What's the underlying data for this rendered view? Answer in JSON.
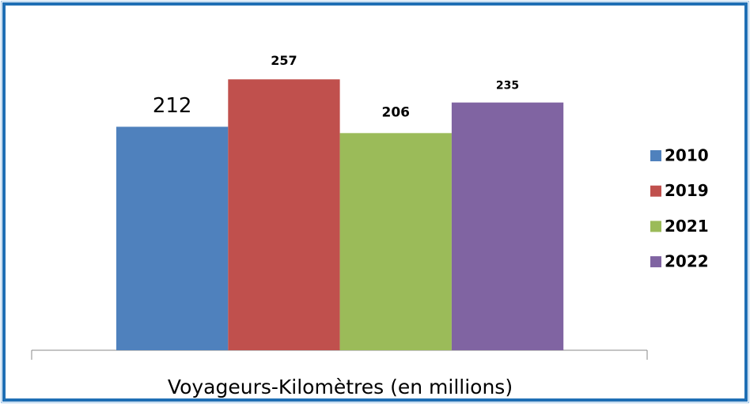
{
  "chart_data": {
    "type": "bar",
    "categories": [
      "Voyageurs-Kilomètres (en millions)"
    ],
    "series": [
      {
        "name": "2010",
        "color": "#4f81bd",
        "values": [
          212
        ]
      },
      {
        "name": "2019",
        "color": "#c0504d",
        "values": [
          257
        ]
      },
      {
        "name": "2021",
        "color": "#9bbb59",
        "values": [
          206
        ]
      },
      {
        "name": "2022",
        "color": "#8064a2",
        "values": [
          235
        ]
      }
    ],
    "ylim": [
      0,
      300
    ],
    "legend": "right"
  }
}
